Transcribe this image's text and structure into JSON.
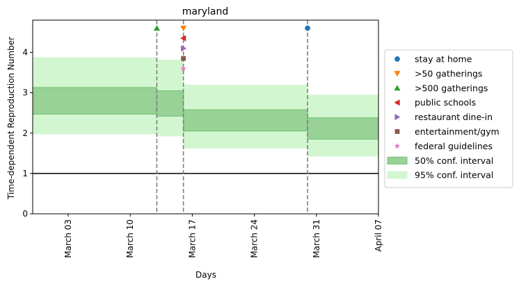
{
  "chart_data": {
    "type": "area",
    "title": "maryland",
    "xlabel": "Days",
    "ylabel": "Time-dependent Reproduction Number",
    "xlim": [
      "2020-02-28",
      "2020-04-07"
    ],
    "ylim": [
      0,
      4.8
    ],
    "yticks": [
      0,
      1,
      2,
      3,
      4
    ],
    "xticks": [
      {
        "date": "2020-03-03",
        "label": "March 03"
      },
      {
        "date": "2020-03-10",
        "label": "March 10"
      },
      {
        "date": "2020-03-17",
        "label": "March 17"
      },
      {
        "date": "2020-03-24",
        "label": "March 24"
      },
      {
        "date": "2020-03-31",
        "label": "March 31"
      },
      {
        "date": "2020-04-07",
        "label": "April 07"
      }
    ],
    "reference_line": {
      "y": 1,
      "color": "#000000"
    },
    "intervention_dates": [
      "2020-03-13",
      "2020-03-16",
      "2020-03-30"
    ],
    "segments": [
      {
        "start": "2020-02-28",
        "end": "2020-03-13",
        "ci50": [
          2.47,
          3.13
        ],
        "ci95": [
          1.97,
          3.88
        ]
      },
      {
        "start": "2020-03-13",
        "end": "2020-03-16",
        "ci50": [
          2.42,
          3.05
        ],
        "ci95": [
          1.92,
          3.82
        ]
      },
      {
        "start": "2020-03-16",
        "end": "2020-03-30",
        "ci50": [
          2.05,
          2.58
        ],
        "ci95": [
          1.62,
          3.2
        ]
      },
      {
        "start": "2020-03-30",
        "end": "2020-04-07",
        "ci50": [
          1.85,
          2.38
        ],
        "ci95": [
          1.42,
          2.95
        ]
      }
    ],
    "interventions": [
      {
        "name": "stay at home",
        "date": "2020-03-30",
        "y": 4.6,
        "marker": "circle",
        "color": "#1f77b4"
      },
      {
        "name": ">50 gatherings",
        "date": "2020-03-16",
        "y": 4.6,
        "marker": "triangle-down",
        "color": "#ff7f0e"
      },
      {
        "name": ">500 gatherings",
        "date": "2020-03-13",
        "y": 4.6,
        "marker": "triangle-up",
        "color": "#2ca02c"
      },
      {
        "name": "public schools",
        "date": "2020-03-16",
        "y": 4.35,
        "marker": "triangle-left",
        "color": "#d62728"
      },
      {
        "name": "restaurant dine-in",
        "date": "2020-03-16",
        "y": 4.1,
        "marker": "triangle-right",
        "color": "#9467bd"
      },
      {
        "name": "entertainment/gym",
        "date": "2020-03-16",
        "y": 3.85,
        "marker": "square",
        "color": "#8c564b"
      },
      {
        "name": "federal guidelines",
        "date": "2020-03-16",
        "y": 3.6,
        "marker": "star",
        "color": "#e377c2"
      }
    ],
    "bands": [
      {
        "name": "50% conf. interval",
        "fill": "#98d296",
        "edge": "#6fbf6f"
      },
      {
        "name": "95% conf. interval",
        "fill": "#d2f7d0",
        "edge": "#d2f7d0"
      }
    ],
    "legend_position": "right"
  }
}
